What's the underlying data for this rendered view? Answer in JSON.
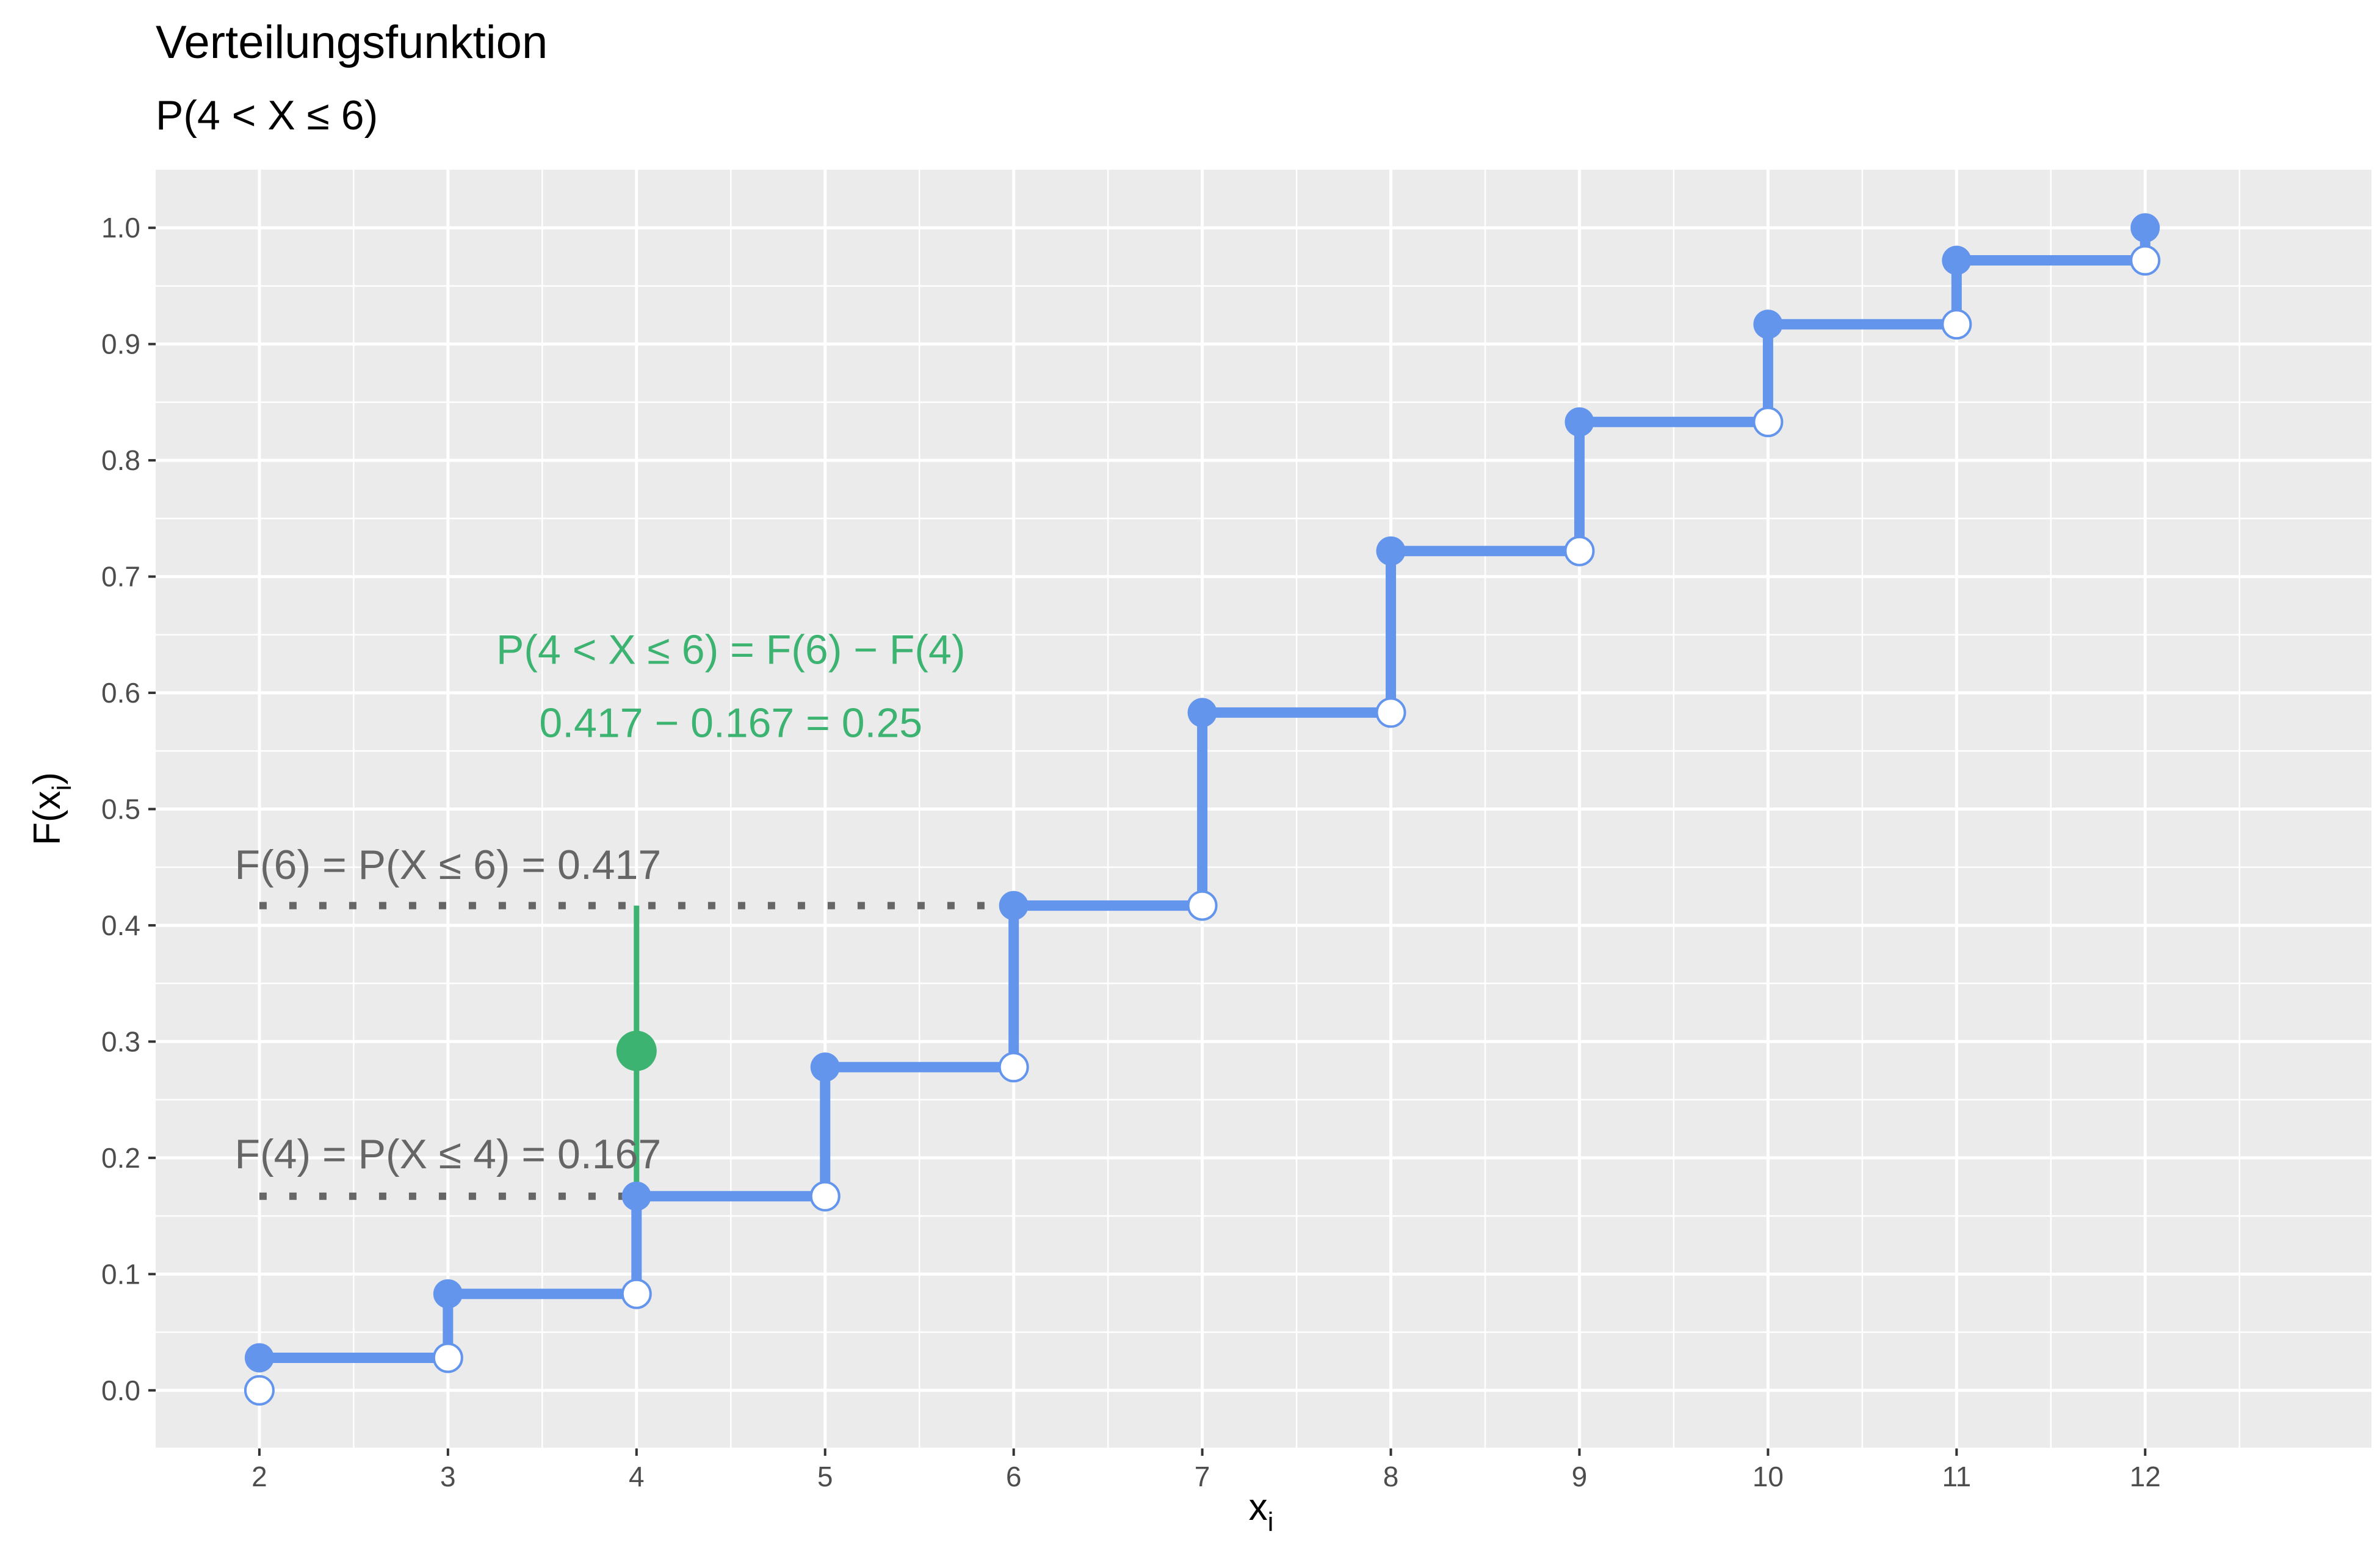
{
  "title": "Verteilungsfunktion",
  "subtitle": "P(4 < X ≤ 6)",
  "chart_data": {
    "type": "line",
    "step": "empirical CDF (right-continuous step function)",
    "xlabel": "x",
    "xlabel_subscript": "i",
    "ylabel": "F(x",
    "ylabel_subscript": "i",
    "ylabel_close": ")",
    "xlim": [
      1.45,
      13.2
    ],
    "ylim": [
      -0.05,
      1.05
    ],
    "x_ticks": [
      2,
      3,
      4,
      5,
      6,
      7,
      8,
      9,
      10,
      11,
      12
    ],
    "y_ticks": [
      0.0,
      0.1,
      0.2,
      0.3,
      0.4,
      0.5,
      0.6,
      0.7,
      0.8,
      0.9,
      1.0
    ],
    "y_tick_labels": [
      "0.0",
      "0.1",
      "0.2",
      "0.3",
      "0.4",
      "0.5",
      "0.6",
      "0.7",
      "0.8",
      "0.9",
      "1.0"
    ],
    "x_minor_breaks": [
      2.5,
      3.5,
      4.5,
      5.5,
      6.5,
      7.5,
      8.5,
      9.5,
      10.5,
      11.5,
      12.5
    ],
    "y_minor_breaks": [
      -0.05,
      0.05,
      0.15,
      0.25,
      0.35,
      0.45,
      0.55,
      0.65,
      0.75,
      0.85,
      0.95
    ],
    "grid": true,
    "series": [
      {
        "x": [
          2,
          3,
          4,
          5,
          6,
          7,
          8,
          9,
          10,
          11,
          12
        ],
        "cdf": [
          0.028,
          0.083,
          0.167,
          0.278,
          0.417,
          0.583,
          0.722,
          0.833,
          0.917,
          0.972,
          1.0
        ],
        "left_limit": [
          0.0,
          0.028,
          0.083,
          0.167,
          0.278,
          0.417,
          0.583,
          0.722,
          0.833,
          0.917,
          0.972
        ]
      }
    ],
    "colors": {
      "step_line": "#6495ed",
      "open_point_fill": "#ffffff",
      "probability_segment": "#3cb371",
      "reference_lines": "#666666",
      "panel_background": "#ebebeb",
      "grid": "#ffffff"
    },
    "probability_segment": {
      "x": 4,
      "y_from": 0.167,
      "y_to": 0.417,
      "point_y": 0.292
    },
    "reference_lines": [
      {
        "y": 0.417,
        "x_from": 2,
        "x_to": 6
      },
      {
        "y": 0.167,
        "x_from": 2,
        "x_to": 4
      }
    ],
    "annotations": [
      {
        "id": "formula",
        "text": "P(4 < X ≤ 6) = F(6) − F(4)",
        "x": 4.5,
        "y": 0.625,
        "color": "#3cb371"
      },
      {
        "id": "calc",
        "text": "0.417 − 0.167 = 0.25",
        "x": 4.5,
        "y": 0.562,
        "color": "#3cb371"
      },
      {
        "id": "f6",
        "text": "F(6) = P(X ≤ 6) = 0.417",
        "x": 3.0,
        "y": 0.44,
        "color": "#666666"
      },
      {
        "id": "f4",
        "text": "F(4) = P(X ≤ 4) = 0.167",
        "x": 3.0,
        "y": 0.191,
        "color": "#666666"
      }
    ]
  }
}
